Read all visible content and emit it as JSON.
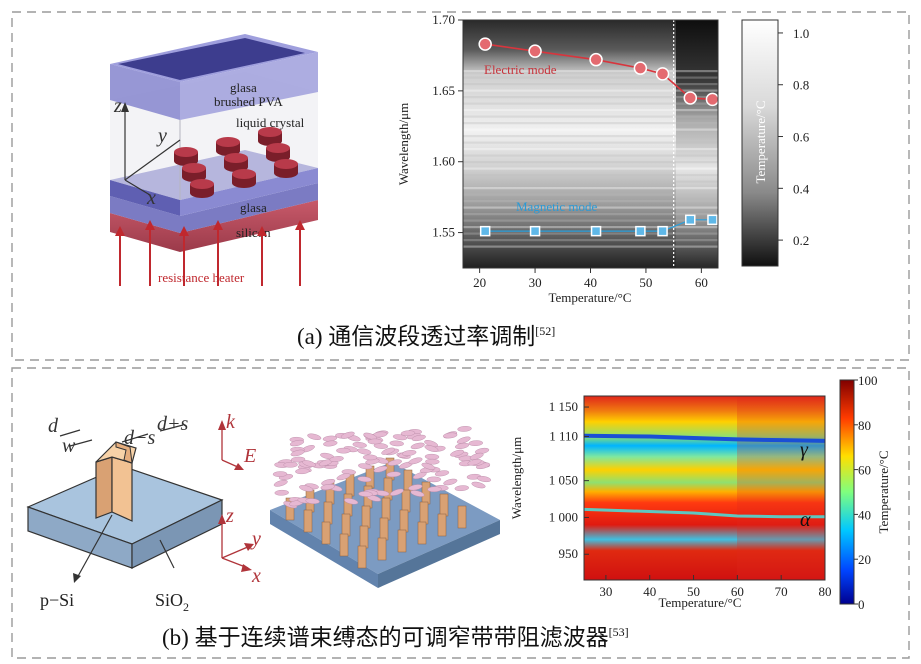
{
  "panel_a": {
    "caption": "(a) 通信波段透过率调制",
    "caption_ref": "[52]",
    "diagram": {
      "glass_top": "glasa",
      "brushed_pva": "brushed PVA",
      "liquid_crystal": "liquid crystal",
      "glass_bottom": "glasa",
      "silicon": "silicon",
      "heater": "resistance heater",
      "axis_x": "x",
      "axis_y": "y",
      "axis_z": "z"
    }
  },
  "panel_b": {
    "caption": "(b) 基于连续谱束缚态的可调窄带带阻滤波器",
    "caption_ref": "[53]",
    "diagram": {
      "d": "d",
      "w": "w",
      "d_minus_s": "d−s",
      "d_plus_s": "d+s",
      "k": "k",
      "E": "E",
      "x": "x",
      "y": "y",
      "z": "z",
      "psi": "p−Si",
      "sio2_base": "SiO",
      "sio2_sub": "2"
    }
  },
  "colors": {
    "electric_mode": "#d8353d",
    "magnetic_mode": "#2aa0dd",
    "gamma_line": "#1a4fd6",
    "alpha_line": "#5fc7c0"
  },
  "chart_data": [
    {
      "type": "heatmap",
      "xlabel": "Temperature/°C",
      "ylabel": "Wavelength/μm",
      "xlim": [
        17,
        63
      ],
      "ylim": [
        1.525,
        1.7
      ],
      "xticks": [
        20,
        30,
        40,
        50,
        60
      ],
      "yticks": [
        1.55,
        1.6,
        1.65,
        1.7
      ],
      "ytick_labels": [
        "1.55",
        "1.60",
        "1.65",
        "1.70"
      ],
      "transition_temperature": 55,
      "series": [
        {
          "name": "Electric mode",
          "x": [
            21,
            30,
            41,
            49,
            53,
            58,
            62
          ],
          "y": [
            1.683,
            1.678,
            1.672,
            1.666,
            1.662,
            1.645,
            1.644
          ]
        },
        {
          "name": "Magnetic mode",
          "x": [
            21,
            30,
            41,
            49,
            53,
            58,
            62
          ],
          "y": [
            1.551,
            1.551,
            1.551,
            1.551,
            1.551,
            1.559,
            1.559
          ]
        }
      ],
      "colorbar": {
        "label": "Temperature/°C",
        "ticks": [
          1.0,
          0.8,
          0.6,
          0.4,
          0.2
        ],
        "range": [
          0.1,
          1.05
        ],
        "colormap": "gray"
      }
    },
    {
      "type": "heatmap",
      "xlabel": "Temperature/°C",
      "ylabel": "Wavelength/μm",
      "xlim": [
        25,
        80
      ],
      "ylim": [
        915,
        1165
      ],
      "xticks": [
        30,
        40,
        50,
        60,
        70,
        80
      ],
      "yticks": [
        950,
        1000,
        1050,
        1110,
        1150
      ],
      "ytick_labels": [
        "950",
        "1 000",
        "1 050",
        "1 110",
        "1 150"
      ],
      "series": [
        {
          "name": "γ",
          "x": [
            25,
            40,
            50,
            60,
            70,
            80
          ],
          "y": [
            1111,
            1110,
            1108,
            1106,
            1105,
            1104
          ]
        },
        {
          "name": "α",
          "x": [
            25,
            40,
            50,
            60,
            70,
            80
          ],
          "y": [
            1011,
            1008,
            1006,
            1002,
            1001,
            1001
          ]
        }
      ],
      "colorbar": {
        "label": "Temperature/°C",
        "ticks": [
          0,
          20,
          40,
          60,
          80,
          100
        ],
        "range": [
          0,
          100
        ],
        "colormap": "jet"
      }
    }
  ]
}
